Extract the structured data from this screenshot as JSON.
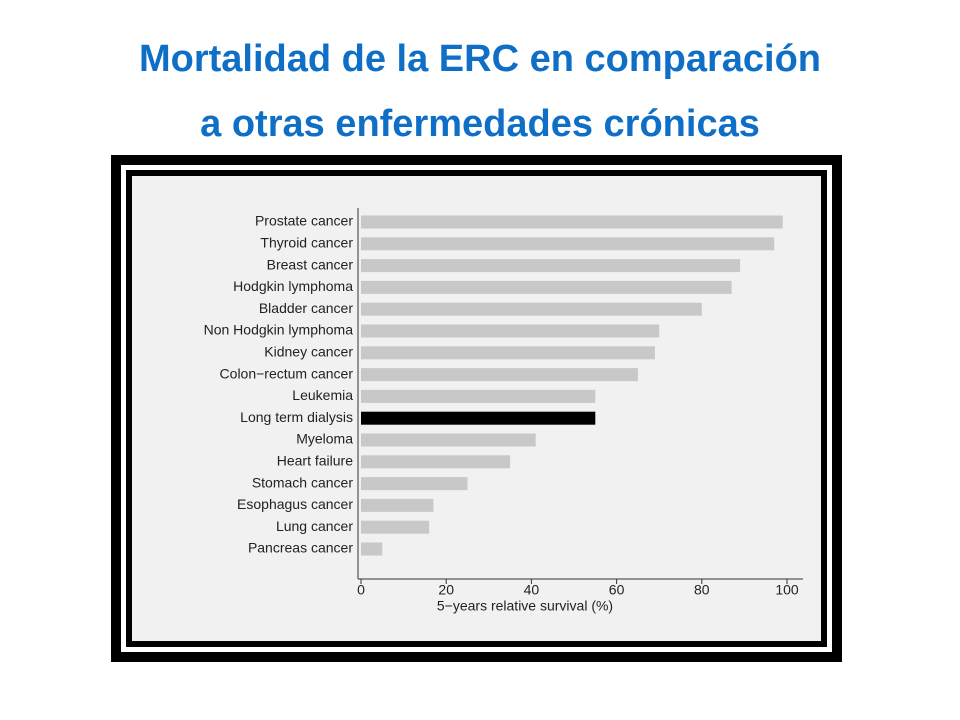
{
  "chart_data": {
    "type": "barh",
    "title": [
      "Mortalidad de la ERC en comparación",
      "a otras enfermedades crónicas"
    ],
    "x_label": "5−years relative survival (%)",
    "categories": [
      "Prostate cancer",
      "Thyroid cancer",
      "Breast cancer",
      "Hodgkin lymphoma",
      "Bladder cancer",
      "Non Hodgkin lymphoma",
      "Kidney cancer",
      "Colon−rectum cancer",
      "Leukemia",
      "Long term dialysis",
      "Myeloma",
      "Heart failure",
      "Stomach cancer",
      "Esophagus cancer",
      "Lung cancer",
      "Pancreas cancer"
    ],
    "values": [
      99,
      97,
      89,
      87,
      80,
      70,
      69,
      65,
      55,
      55,
      41,
      35,
      25,
      17,
      16,
      5
    ],
    "colors": [
      "#c8c8c8",
      "#c8c8c8",
      "#c8c8c8",
      "#c8c8c8",
      "#c8c8c8",
      "#c8c8c8",
      "#c8c8c8",
      "#c8c8c8",
      "#c8c8c8",
      "#000000",
      "#c8c8c8",
      "#c8c8c8",
      "#c8c8c8",
      "#c8c8c8",
      "#c8c8c8",
      "#c8c8c8"
    ],
    "xlim": [
      0,
      100
    ],
    "xticks": [
      0,
      20,
      40,
      60,
      80,
      100
    ],
    "grid": false
  }
}
